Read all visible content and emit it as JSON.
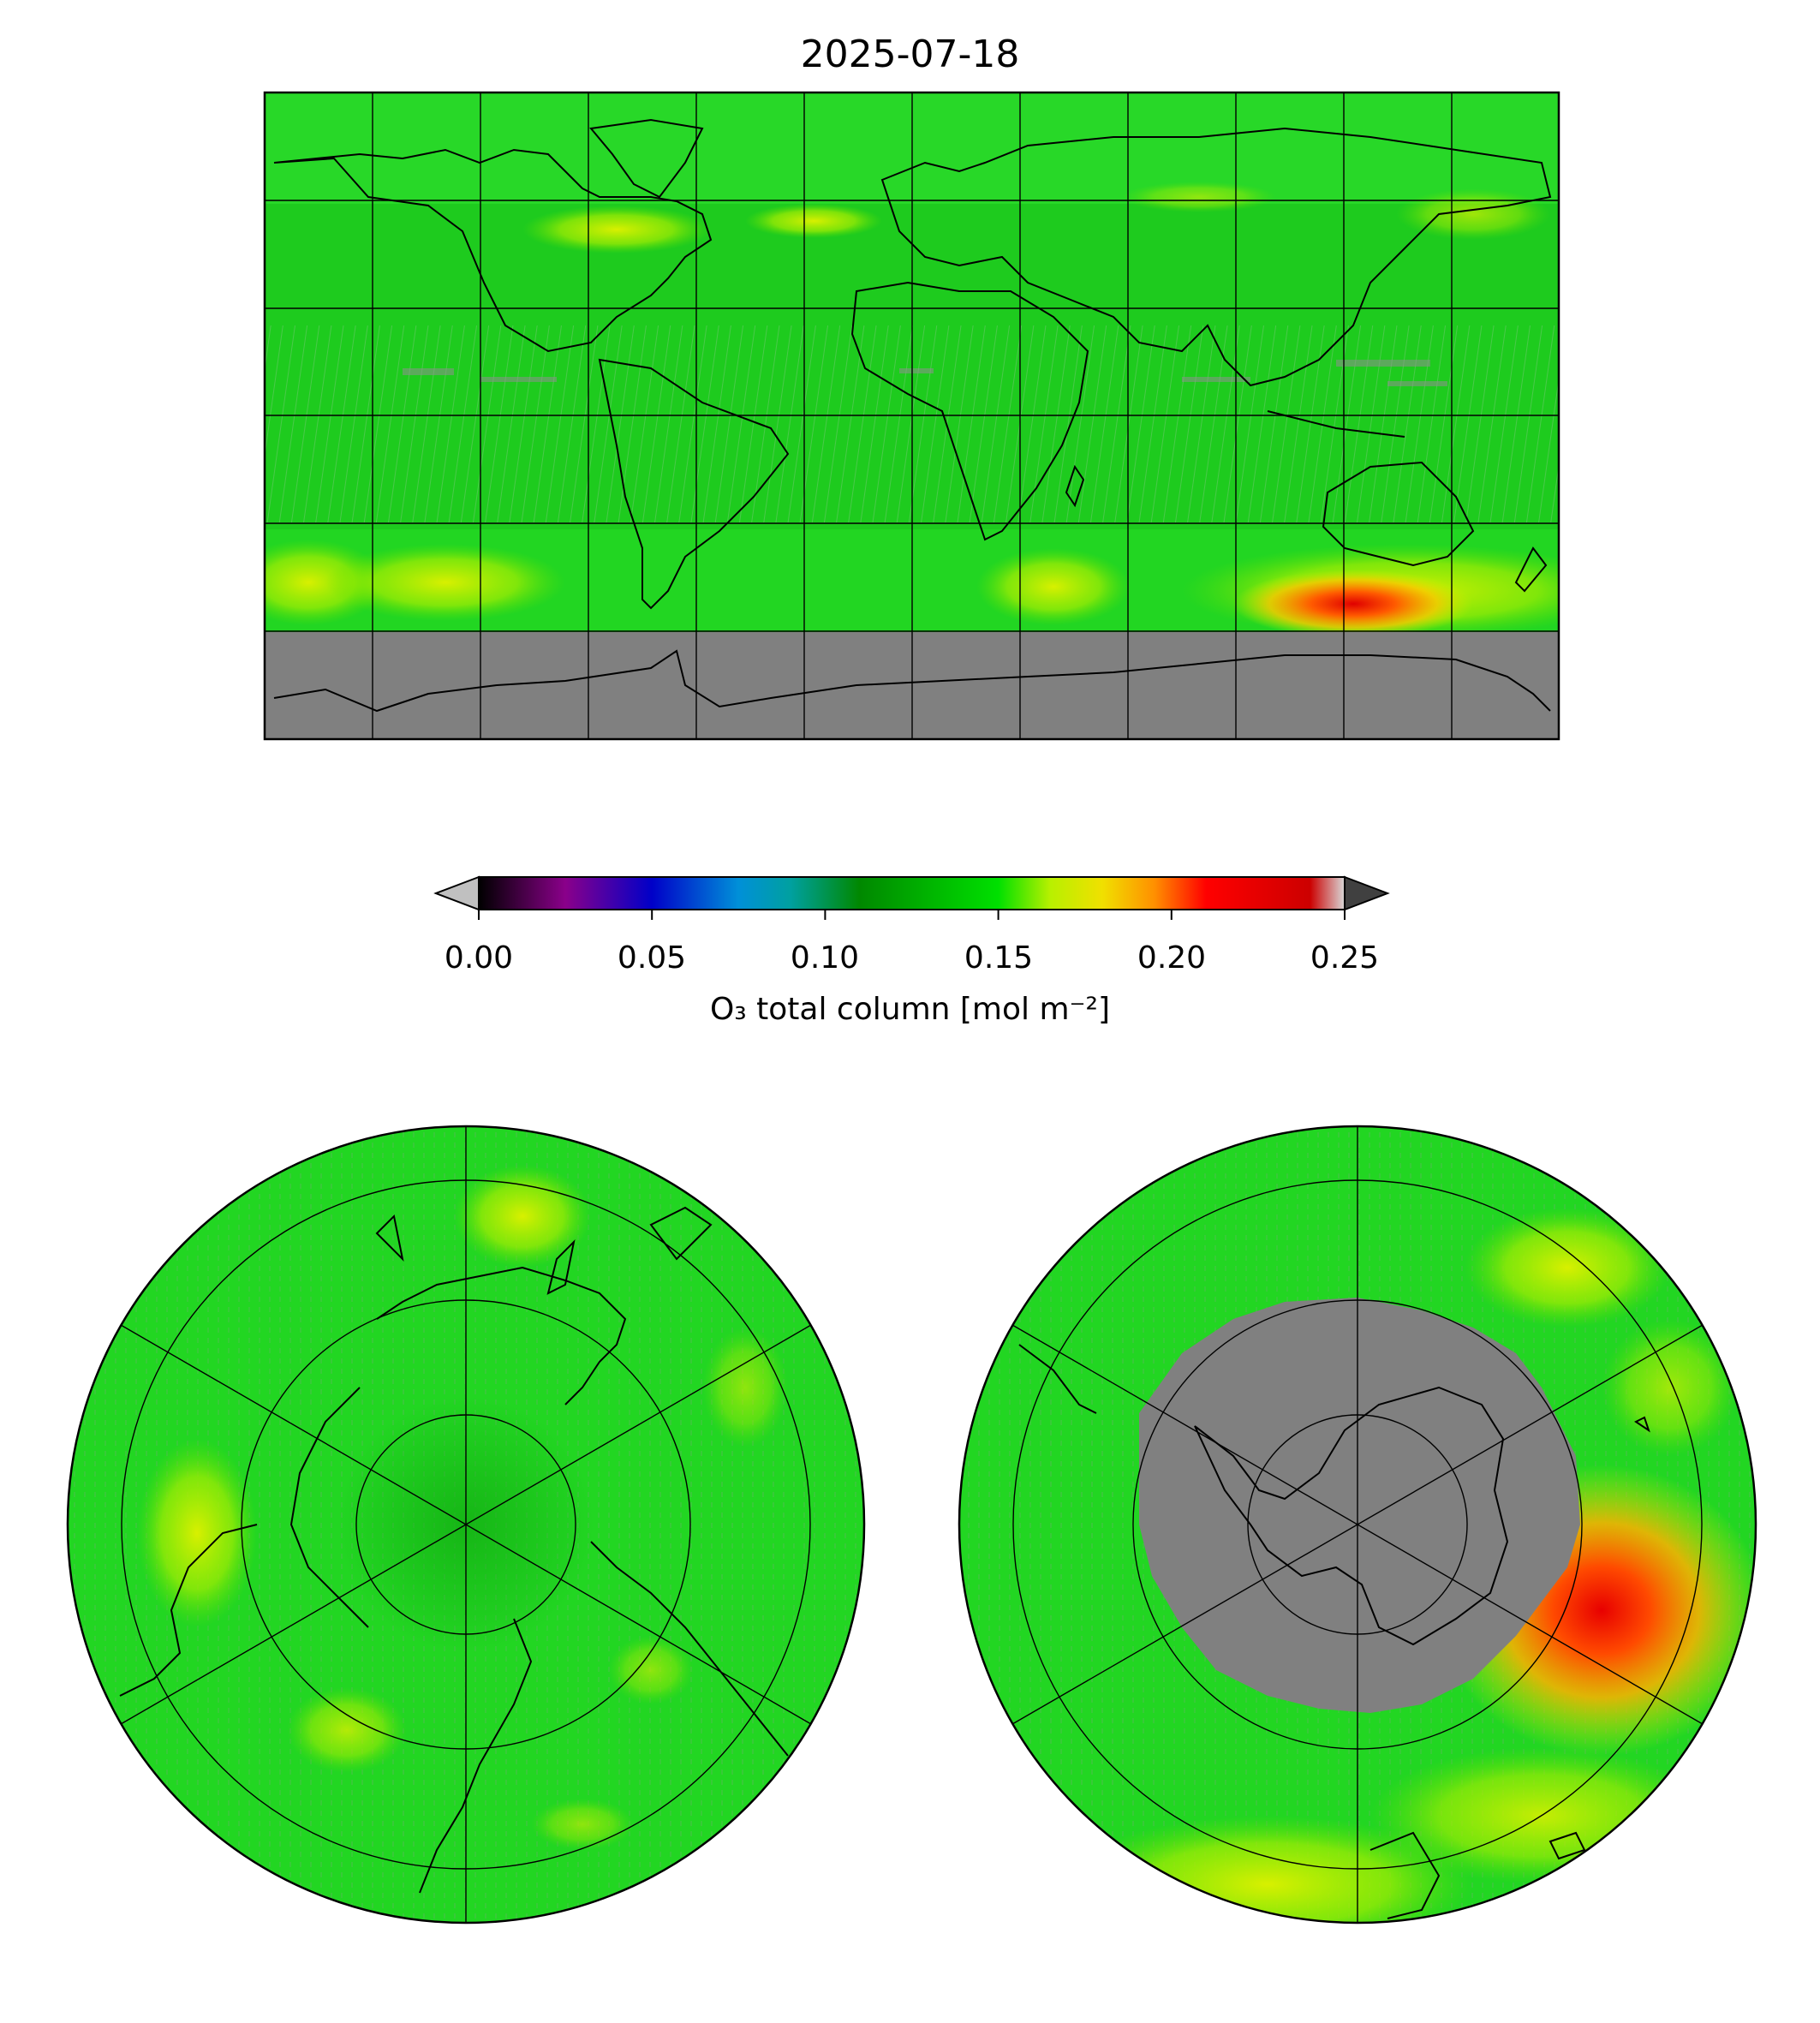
{
  "title": "2025-07-18",
  "colorbar": {
    "label": "O₃ total column [mol m⁻²]",
    "ticks": [
      "0.00",
      "0.05",
      "0.10",
      "0.15",
      "0.20",
      "0.25"
    ],
    "range": [
      0.0,
      0.25
    ],
    "extend": "both",
    "under_color": "#c0c0c0",
    "over_color": "#404040",
    "stops": [
      {
        "v": 0.0,
        "c": "#000000"
      },
      {
        "v": 0.025,
        "c": "#8a008a"
      },
      {
        "v": 0.05,
        "c": "#0000c8"
      },
      {
        "v": 0.075,
        "c": "#0090d8"
      },
      {
        "v": 0.09,
        "c": "#00a0a0"
      },
      {
        "v": 0.11,
        "c": "#008800"
      },
      {
        "v": 0.15,
        "c": "#00e000"
      },
      {
        "v": 0.165,
        "c": "#b8f000"
      },
      {
        "v": 0.18,
        "c": "#f0e000"
      },
      {
        "v": 0.195,
        "c": "#ff9000"
      },
      {
        "v": 0.21,
        "c": "#ff0000"
      },
      {
        "v": 0.24,
        "c": "#cc0000"
      },
      {
        "v": 0.25,
        "c": "#d8d8d8"
      }
    ]
  },
  "map": {
    "projection": "equirectangular",
    "missing_color": "#808080",
    "base_color": "#22d622",
    "features": [
      "coastlines",
      "graticule"
    ]
  },
  "north_polar_map": {
    "projection": "north-polar-stereographic",
    "base_color": "#22d622"
  },
  "south_polar_map": {
    "projection": "south-polar-stereographic",
    "base_color": "#22d622",
    "missing_color": "#808080"
  }
}
